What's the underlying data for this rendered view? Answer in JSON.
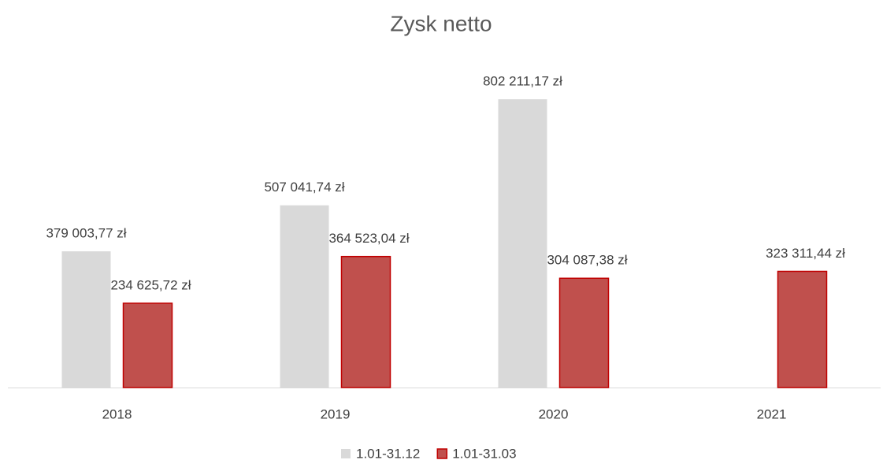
{
  "chart_data": {
    "type": "bar",
    "title": "Zysk netto",
    "categories": [
      "2018",
      "2019",
      "2020",
      "2021"
    ],
    "series": [
      {
        "name": "1.01-31.12",
        "color": "#d9d9d9",
        "values": [
          379003.77,
          507041.74,
          802211.17,
          null
        ],
        "value_labels": [
          "379 003,77 zł",
          "507 041,74 zł",
          "802 211,17 zł",
          null
        ]
      },
      {
        "name": "1.01-31.03",
        "color": "#c0504d",
        "stroke": "#c00000",
        "values": [
          234625.72,
          364523.04,
          304087.38,
          323311.44
        ],
        "value_labels": [
          "234 625,72 zł",
          "364 523,04 zł",
          "304 087,38 zł",
          "323 311,44 zł"
        ]
      }
    ],
    "legend": "bottom"
  }
}
